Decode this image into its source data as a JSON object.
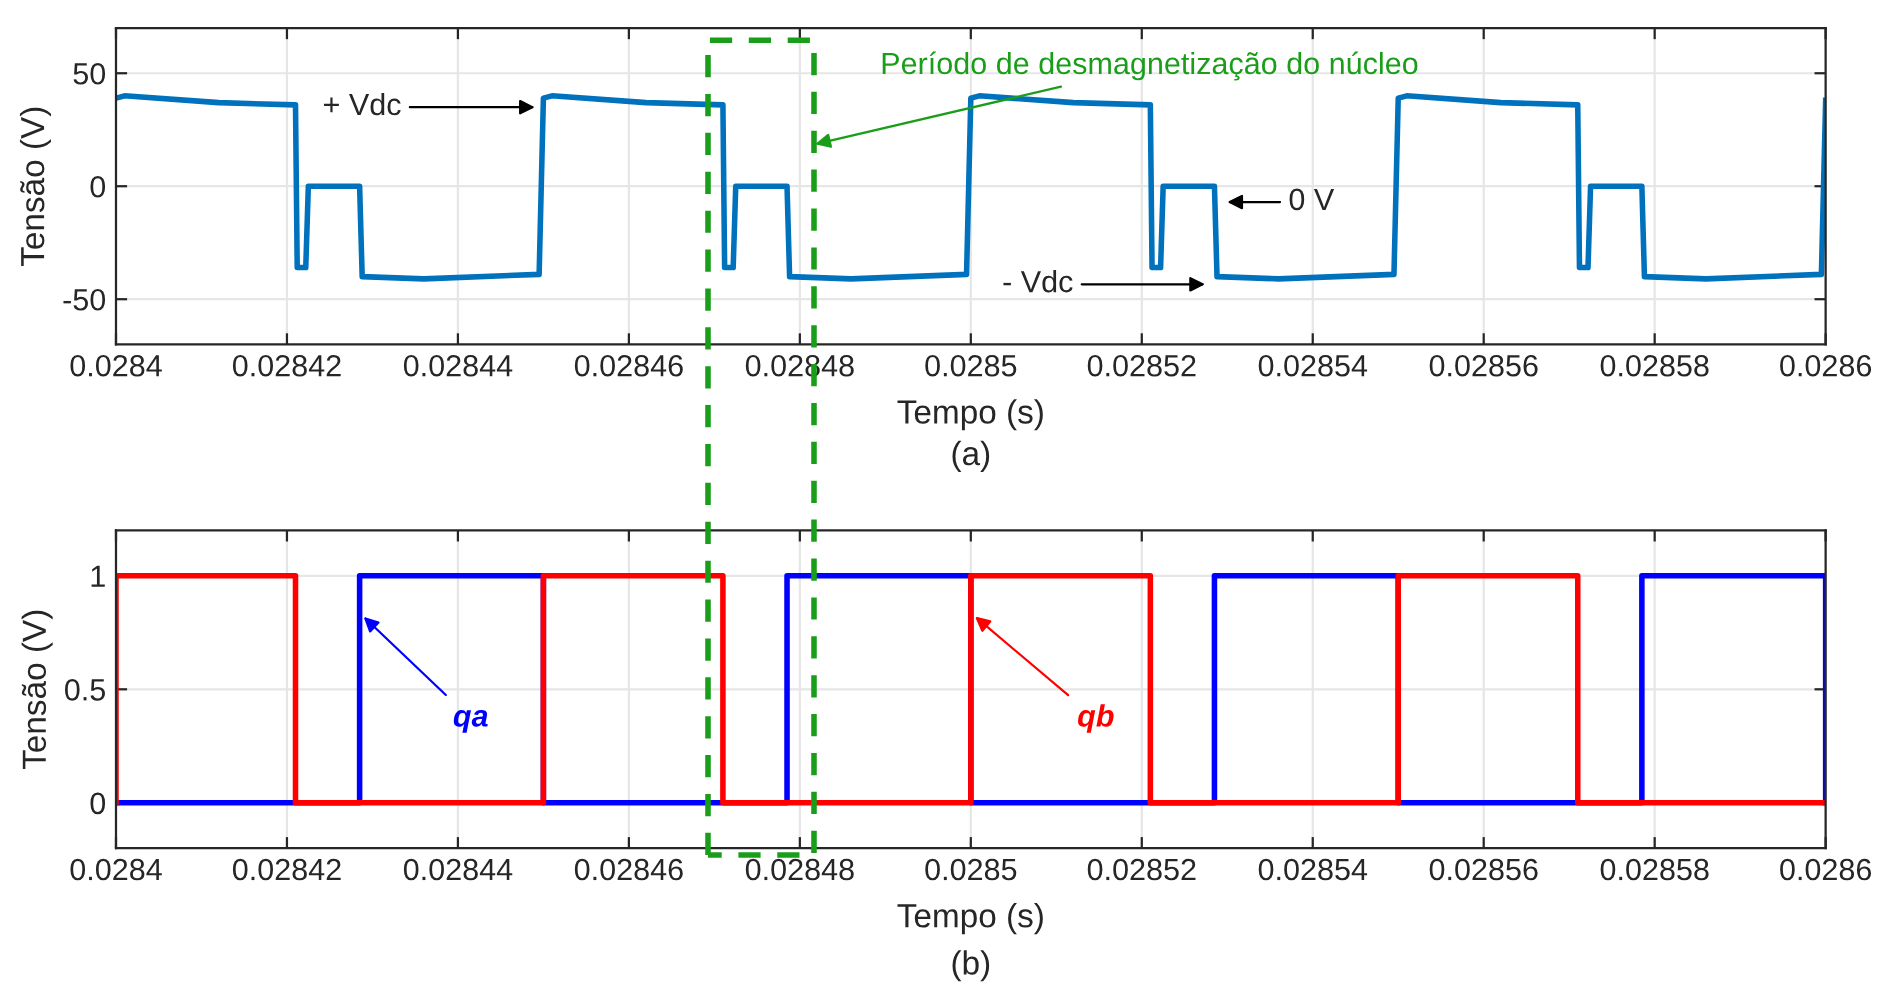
{
  "chart_data": [
    {
      "type": "line",
      "xlabel": "Tempo (s)",
      "ylabel": "Tensão (V)",
      "xlim": [
        0.0284,
        0.0286
      ],
      "xticks": [
        0.0284,
        0.02842,
        0.02844,
        0.02846,
        0.02848,
        0.0285,
        0.02852,
        0.02854,
        0.02856,
        0.02858,
        0.0286
      ],
      "ylim": [
        -70,
        70
      ],
      "yticks": [
        -50,
        0,
        50
      ],
      "grid": true,
      "legend": false,
      "line_style": "solid",
      "series": [
        {
          "color": "#0072bd",
          "x": [
            0.0284,
            0.028401,
            0.028412,
            0.028421,
            0.0284212,
            0.0284222,
            0.0284225,
            0.0284285,
            0.0284288,
            0.028436,
            0.0284495,
            0.02845,
            0.028451,
            0.028462,
            0.028471,
            0.0284712,
            0.0284722,
            0.0284725,
            0.0284785,
            0.0284788,
            0.028486,
            0.0284995,
            0.0285,
            0.028501,
            0.028512,
            0.028521,
            0.0285212,
            0.0285222,
            0.0285225,
            0.0285285,
            0.0285288,
            0.028536,
            0.0285495,
            0.02855,
            0.028551,
            0.028562,
            0.028571,
            0.0285712,
            0.0285722,
            0.0285725,
            0.0285785,
            0.0285788,
            0.028586,
            0.0285995,
            0.0286
          ],
          "values": [
            39,
            40,
            37,
            36,
            -36,
            -36,
            0,
            0,
            -40,
            -41,
            -39,
            39,
            40,
            37,
            36,
            -36,
            -36,
            0,
            0,
            -40,
            -41,
            -39,
            39,
            40,
            37,
            36,
            -36,
            -36,
            0,
            0,
            -40,
            -41,
            -39,
            39,
            40,
            37,
            36,
            -36,
            -36,
            0,
            0,
            -40,
            -41,
            -39,
            38
          ]
        }
      ],
      "annotations": [
        {
          "text": "+ Vdc",
          "x": 0.028449,
          "y": 35
        },
        {
          "text": "0 V",
          "x": 0.02853,
          "y": -7
        },
        "- Vdc",
        "Período de desmagnetização do núcleo",
        "(a)"
      ]
    },
    {
      "type": "line",
      "xlabel": "Tempo (s)",
      "ylabel": "Tensão (V)",
      "xlim": [
        0.0284,
        0.0286
      ],
      "xticks": [
        0.0284,
        0.02842,
        0.02844,
        0.02846,
        0.02848,
        0.0285,
        0.02852,
        0.02854,
        0.02856,
        0.02858,
        0.0286
      ],
      "ylim": [
        -0.2,
        1.2
      ],
      "yticks": [
        0,
        0.5,
        1
      ],
      "grid": true,
      "legend": false,
      "line_style": "solid",
      "series": [
        {
          "name": "qa",
          "color": "#0000ff",
          "x": [
            0.0284,
            0.0284285,
            0.0284285,
            0.02845,
            0.02845,
            0.0284785,
            0.0284785,
            0.0285,
            0.0285,
            0.0285285,
            0.0285285,
            0.02855,
            0.02855,
            0.0285785,
            0.0285785,
            0.0286,
            0.0286
          ],
          "values": [
            0,
            0,
            1,
            1,
            0,
            0,
            1,
            1,
            0,
            0,
            1,
            1,
            0,
            0,
            1,
            1,
            0
          ]
        },
        {
          "name": "qb",
          "color": "#ff0000",
          "x": [
            0.0284,
            0.0284,
            0.028421,
            0.028421,
            0.02845,
            0.02845,
            0.028471,
            0.028471,
            0.0285,
            0.0285,
            0.028521,
            0.028521,
            0.02855,
            0.02855,
            0.028571,
            0.028571,
            0.0286
          ],
          "values": [
            0,
            1,
            1,
            0,
            0,
            1,
            1,
            0,
            0,
            1,
            1,
            0,
            0,
            1,
            1,
            0,
            0
          ]
        }
      ],
      "annotations": [
        "(b)"
      ]
    }
  ]
}
